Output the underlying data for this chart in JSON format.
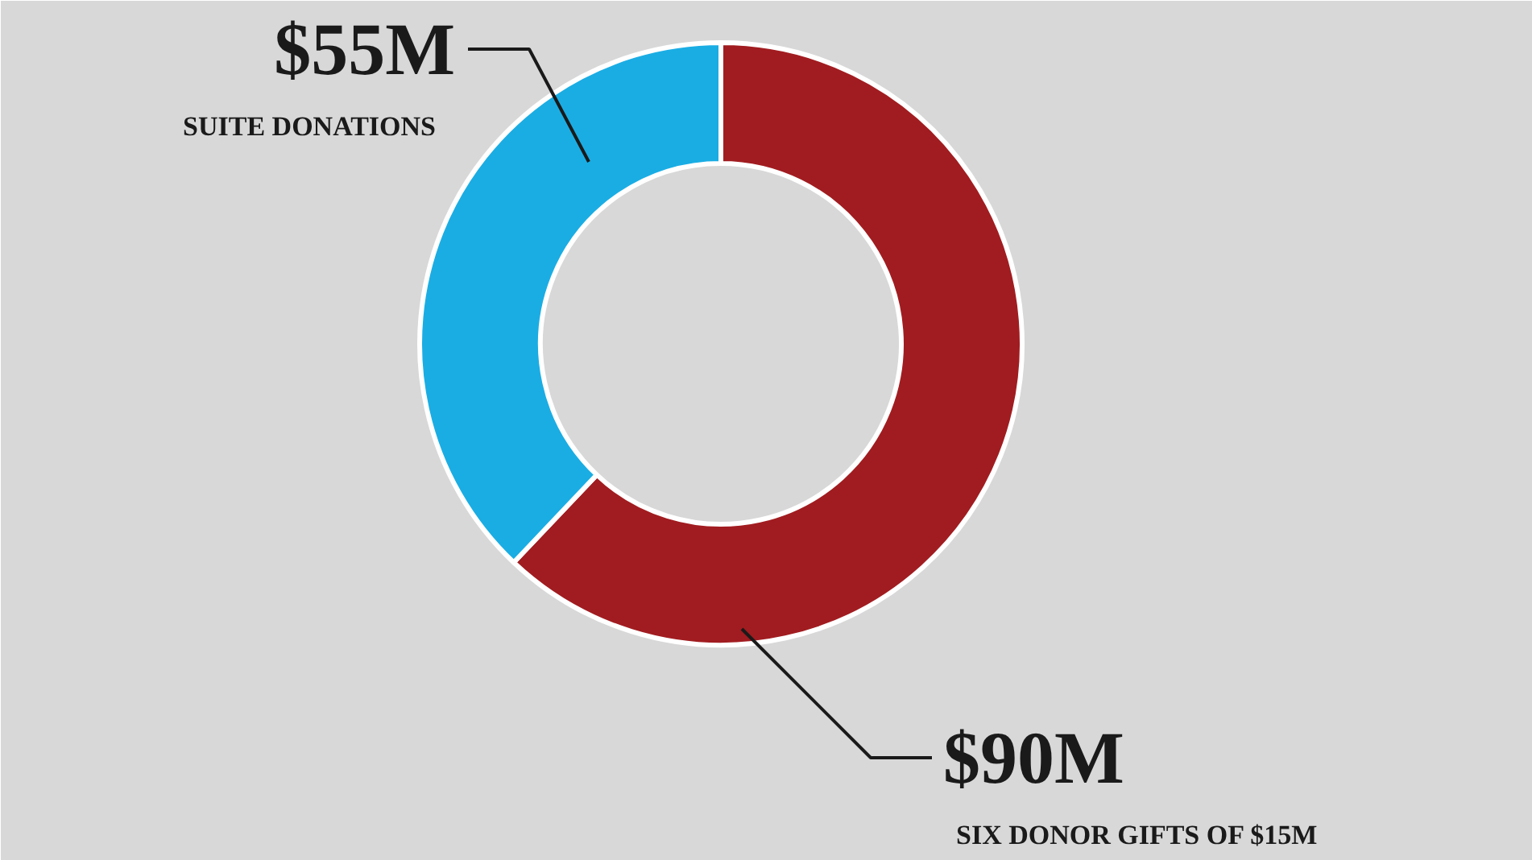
{
  "chart_data": {
    "type": "donut",
    "categories": [
      "SIX DONOR GIFTS OF $15M",
      "SUITE DONATIONS"
    ],
    "values": [
      90,
      55
    ],
    "colors": [
      "#a11c20",
      "#1aade4"
    ],
    "value_labels": [
      "$90M",
      "$55M"
    ]
  }
}
